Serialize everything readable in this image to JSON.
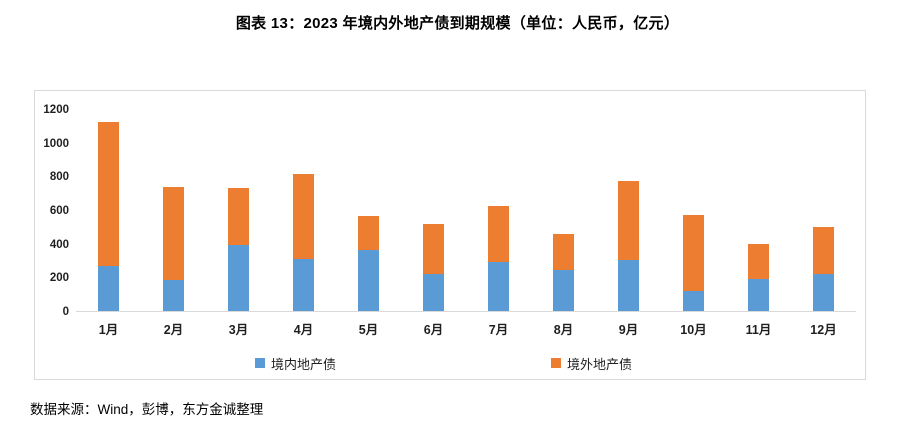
{
  "title": "图表 13：2023 年境内外地产债到期规模（单位：人民币，亿元）",
  "footer": "数据来源：Wind，彭博，东方金诚整理",
  "colors": {
    "domestic_series": "#5B9BD5",
    "offshore_series": "#ED7D31",
    "chart_border": "#D9D9D9",
    "axis_line": "#D9D9D9",
    "text": "#1F1F1F"
  },
  "chart_data": {
    "type": "bar",
    "stacked": true,
    "title": "图表 13：2023 年境内外地产债到期规模（单位：人民币，亿元）",
    "categories": [
      "1月",
      "2月",
      "3月",
      "4月",
      "5月",
      "6月",
      "7月",
      "8月",
      "9月",
      "10月",
      "11月",
      "12月"
    ],
    "series": [
      {
        "name": "境内地产债",
        "color": "#5B9BD5",
        "values": [
          270,
          185,
          390,
          310,
          362,
          218,
          290,
          246,
          302,
          118,
          188,
          218
        ]
      },
      {
        "name": "境外地产债",
        "color": "#ED7D31",
        "values": [
          855,
          550,
          340,
          506,
          200,
          300,
          333,
          212,
          470,
          455,
          213,
          284
        ]
      }
    ],
    "stack_totals": [
      1125,
      735,
      730,
      816,
      562,
      518,
      623,
      458,
      772,
      573,
      401,
      502
    ],
    "xlabel": "",
    "ylabel": "",
    "ylim": [
      0,
      1200
    ],
    "yticks": [
      0,
      200,
      400,
      600,
      800,
      1000,
      1200
    ],
    "grid": false,
    "legend_position": "bottom-inside"
  }
}
